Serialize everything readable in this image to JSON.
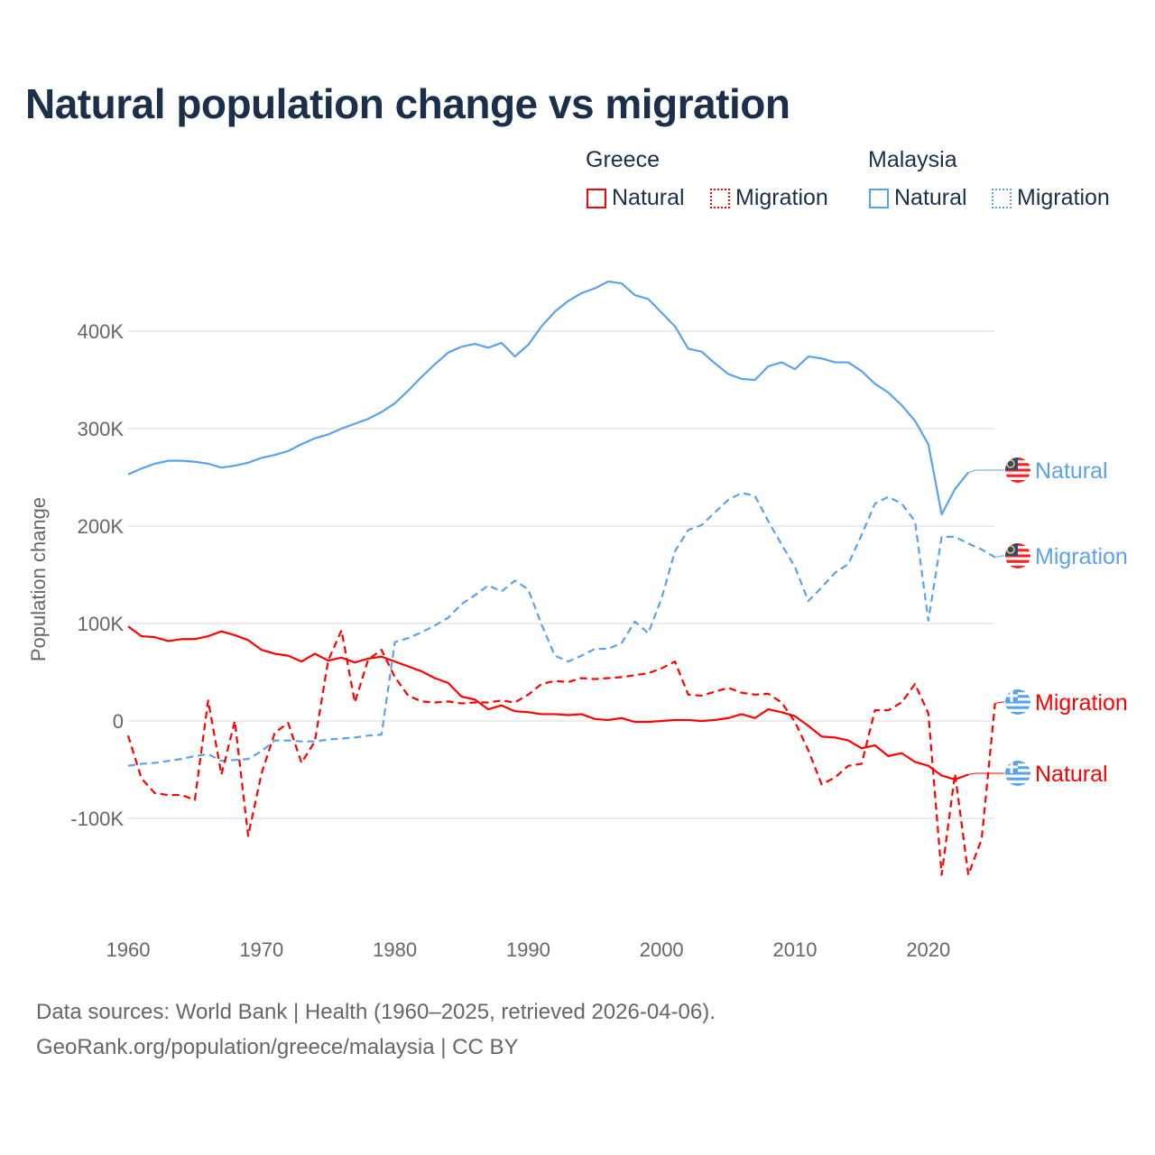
{
  "title": "Natural population change vs migration",
  "legend": {
    "groups": [
      {
        "name": "Greece",
        "items": [
          "Natural",
          "Migration"
        ],
        "color": "#ff0000"
      },
      {
        "name": "Malaysia",
        "items": [
          "Natural",
          "Migration"
        ],
        "color": "#5aa2ea"
      }
    ]
  },
  "footer": {
    "line1": "Data sources: World Bank | Health (1960–2025, retrieved 2026-04-06).",
    "line2": "GeoRank.org/population/greece/malaysia | CC BY"
  },
  "chart_data": {
    "type": "line",
    "title": "Natural population change vs migration",
    "xlabel": "",
    "ylabel": "Population change",
    "xlim": [
      1960,
      2025
    ],
    "ylim": [
      -175000,
      460000
    ],
    "x_ticks": [
      1960,
      1970,
      1980,
      1990,
      2000,
      2010,
      2020
    ],
    "x_tick_labels": [
      "1960",
      "1970",
      "1980",
      "1990",
      "2000",
      "2010",
      "2020"
    ],
    "y_ticks": [
      -100000,
      0,
      100000,
      200000,
      300000,
      400000
    ],
    "y_tick_labels": [
      "-100K",
      "0",
      "100K",
      "200K",
      "300K",
      "400K"
    ],
    "grid": true,
    "series": [
      {
        "name": "Malaysia Natural",
        "country": "Malaysia",
        "label": "Natural",
        "color": "#5aa2ea",
        "dash": false,
        "start": 1960,
        "values": [
          253,
          259,
          264,
          267,
          267,
          266,
          264,
          260,
          262,
          265,
          270,
          273,
          277,
          284,
          290,
          294,
          300,
          305,
          310,
          317,
          326,
          339,
          353,
          366,
          378,
          384,
          387,
          383,
          388,
          374,
          386,
          405,
          420,
          431,
          439,
          444,
          451,
          449,
          437,
          433,
          419,
          405,
          382,
          379,
          367,
          356,
          351,
          350,
          364,
          368,
          361,
          374,
          372,
          368,
          368,
          359,
          346,
          337,
          324,
          308,
          284,
          212,
          238,
          255
        ]
      },
      {
        "name": "Malaysia Migration",
        "country": "Malaysia",
        "label": "Migration",
        "color": "#5aa2ea",
        "dash": true,
        "start": 1960,
        "values": [
          -46,
          -44,
          -43,
          -41,
          -39,
          -36,
          -34,
          -41,
          -40,
          -39,
          -31,
          -20,
          -20,
          -21,
          -21,
          -19,
          -18,
          -17,
          -15,
          -14,
          81,
          85,
          91,
          98,
          106,
          120,
          129,
          139,
          133,
          144,
          135,
          99,
          67,
          61,
          67,
          74,
          74,
          80,
          102,
          90,
          126,
          174,
          196,
          201,
          214,
          227,
          234,
          231,
          205,
          181,
          158,
          123,
          137,
          152,
          161,
          191,
          223,
          230,
          223,
          205,
          103,
          189,
          189,
          182,
          176,
          168
        ]
      },
      {
        "name": "Greece Migration",
        "country": "Greece",
        "label": "Migration",
        "color": "#ff0000",
        "dash": true,
        "start": 1960,
        "values": [
          -15,
          -59,
          -74,
          -76,
          -76,
          -81,
          21,
          -55,
          0,
          -118,
          -54,
          -12,
          -2,
          -43,
          -21,
          62,
          93,
          19,
          63,
          73,
          45,
          26,
          20,
          19,
          20,
          18,
          19,
          19,
          21,
          19,
          27,
          38,
          41,
          40,
          44,
          43,
          44,
          45,
          47,
          49,
          54,
          61,
          27,
          26,
          30,
          34,
          29,
          27,
          28,
          19,
          -1,
          -30,
          -65,
          -58,
          -46,
          -44,
          11,
          11,
          19,
          38,
          8,
          -158,
          -54,
          -158,
          -121,
          18
        ]
      },
      {
        "name": "Greece Natural",
        "country": "Greece",
        "label": "Natural",
        "color": "#ff0000",
        "dash": false,
        "start": 1960,
        "values": [
          97,
          87,
          86,
          82,
          84,
          84,
          87,
          92,
          88,
          83,
          73,
          69,
          67,
          61,
          69,
          62,
          65,
          60,
          64,
          66,
          61,
          56,
          51,
          44,
          39,
          25,
          22,
          12,
          16,
          10,
          9,
          7,
          7,
          6,
          7,
          2,
          1,
          3,
          -1,
          -1,
          0,
          1,
          1,
          0,
          1,
          3,
          7,
          3,
          12,
          9,
          5,
          -5,
          -16,
          -17,
          -20,
          -28,
          -25,
          -36,
          -33,
          -42,
          -46,
          -56,
          -60,
          -55
        ]
      }
    ],
    "value_units": "thousands"
  }
}
